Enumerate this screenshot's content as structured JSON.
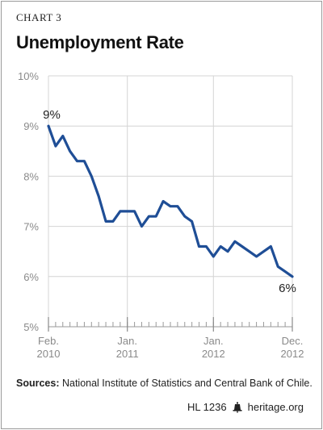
{
  "header": {
    "chart_label": "CHART 3",
    "title": "Unemployment Rate"
  },
  "chart_data": {
    "type": "line",
    "title": "Unemployment Rate",
    "xlabel": "",
    "ylabel": "",
    "ylim": [
      5,
      10
    ],
    "y_ticks": [
      "5%",
      "6%",
      "7%",
      "8%",
      "9%",
      "10%"
    ],
    "x_ticks": [
      {
        "line1": "Feb.",
        "line2": "2010",
        "month_index": 0
      },
      {
        "line1": "Jan.",
        "line2": "2011",
        "month_index": 11
      },
      {
        "line1": "Jan.",
        "line2": "2012",
        "month_index": 23
      },
      {
        "line1": "Dec.",
        "line2": "2012",
        "month_index": 34
      }
    ],
    "grid": true,
    "color": "#1f4e96",
    "x": [
      "Feb 2010",
      "Mar 2010",
      "Apr 2010",
      "May 2010",
      "Jun 2010",
      "Jul 2010",
      "Aug 2010",
      "Sep 2010",
      "Oct 2010",
      "Nov 2010",
      "Dec 2010",
      "Jan 2011",
      "Feb 2011",
      "Mar 2011",
      "Apr 2011",
      "May 2011",
      "Jun 2011",
      "Jul 2011",
      "Aug 2011",
      "Sep 2011",
      "Oct 2011",
      "Nov 2011",
      "Dec 2011",
      "Jan 2012",
      "Feb 2012",
      "Mar 2012",
      "Apr 2012",
      "May 2012",
      "Jun 2012",
      "Jul 2012",
      "Aug 2012",
      "Sep 2012",
      "Oct 2012",
      "Nov 2012",
      "Dec 2012"
    ],
    "values": [
      9.0,
      8.6,
      8.8,
      8.5,
      8.3,
      8.3,
      8.0,
      7.6,
      7.1,
      7.1,
      7.3,
      7.3,
      7.3,
      7.0,
      7.2,
      7.2,
      7.5,
      7.4,
      7.4,
      7.2,
      7.1,
      6.6,
      6.6,
      6.4,
      6.6,
      6.5,
      6.7,
      6.6,
      6.5,
      6.4,
      6.5,
      6.6,
      6.2,
      6.1,
      6.0
    ],
    "annotations": [
      {
        "text": "9%",
        "month_index": 0,
        "value": 9.0
      },
      {
        "text": "6%",
        "month_index": 34,
        "value": 6.0
      }
    ]
  },
  "footer": {
    "sources_label": "Sources:",
    "sources_text": " National Institute of Statistics and Central Bank of Chile.",
    "report_id": "HL 1236",
    "site": "heritage.org"
  }
}
